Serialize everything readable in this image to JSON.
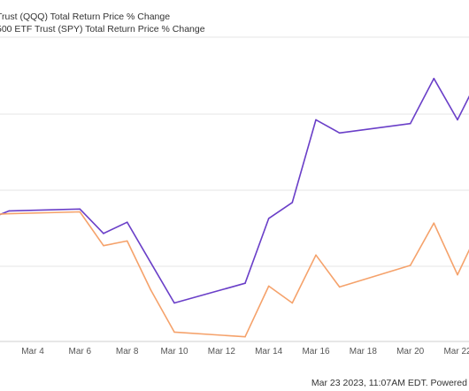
{
  "chart_data": {
    "type": "line",
    "title": "",
    "xlabel": "",
    "ylabel": "",
    "grid": true,
    "legend_position": "top-left",
    "x_ticks": [
      "Mar 4",
      "Mar 6",
      "Mar 8",
      "Mar 10",
      "Mar 12",
      "Mar 14",
      "Mar 16",
      "Mar 18",
      "Mar 20",
      "Mar 22"
    ],
    "series": [
      {
        "name": "Trust (QQQ) Total Return Price % Change",
        "color": "#6a3fc8",
        "x": [
          "Mar 2",
          "Mar 3",
          "Mar 6",
          "Mar 7",
          "Mar 8",
          "Mar 9",
          "Mar 10",
          "Mar 13",
          "Mar 14",
          "Mar 15",
          "Mar 16",
          "Mar 17",
          "Mar 20",
          "Mar 21",
          "Mar 22",
          "Mar 23"
        ],
        "values": [
          0.25,
          0.75,
          0.85,
          -0.45,
          0.15,
          -2.0,
          -4.15,
          -3.1,
          0.35,
          1.2,
          5.6,
          4.9,
          5.4,
          7.8,
          5.6,
          8.1
        ]
      },
      {
        "name": "500 ETF Trust (SPY) Total Return Price % Change",
        "color": "#f5a26b",
        "x": [
          "Mar 2",
          "Mar 3",
          "Mar 6",
          "Mar 7",
          "Mar 8",
          "Mar 9",
          "Mar 10",
          "Mar 13",
          "Mar 14",
          "Mar 15",
          "Mar 16",
          "Mar 17",
          "Mar 20",
          "Mar 21",
          "Mar 22",
          "Mar 23"
        ],
        "values": [
          0.55,
          0.6,
          0.7,
          -1.1,
          -0.85,
          -3.45,
          -5.7,
          -5.95,
          -3.25,
          -4.15,
          -1.6,
          -3.3,
          -2.15,
          0.1,
          -2.65,
          0.0
        ]
      }
    ]
  },
  "legend": {
    "qqq_label": "Trust (QQQ) Total Return Price % Change",
    "spy_label": "500 ETF Trust (SPY) Total Return Price % Change"
  },
  "footer": {
    "timestamp": "Mar 23 2023, 11:07AM EDT.  Powered"
  }
}
